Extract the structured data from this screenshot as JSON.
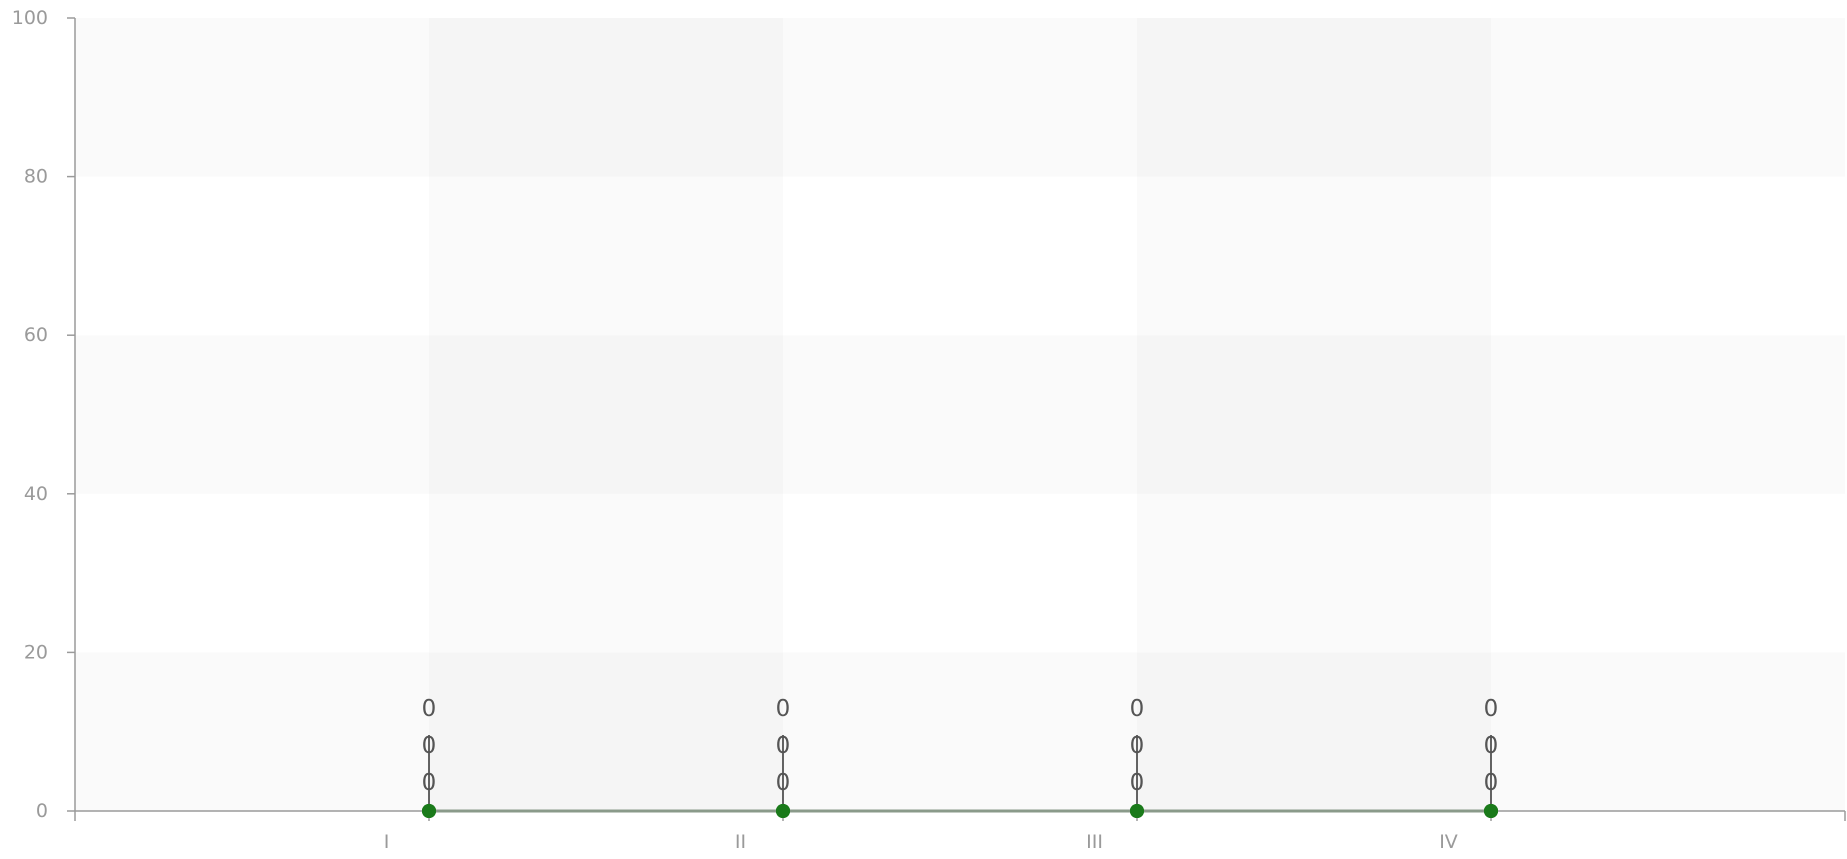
{
  "chart_data": {
    "type": "line",
    "categories": [
      "I",
      "II",
      "III",
      "IV"
    ],
    "series": [
      {
        "values": [
          0,
          0,
          0,
          0
        ]
      },
      {
        "values": [
          0,
          0,
          0,
          0
        ]
      },
      {
        "values": [
          0,
          0,
          0,
          0
        ]
      }
    ],
    "ylim": [
      0,
      100
    ],
    "yticks": [
      0,
      20,
      40,
      60,
      80,
      100
    ],
    "title": "",
    "xlabel": "",
    "ylabel": "",
    "grid": true,
    "legend": "none",
    "colors": {
      "line": "#8a9a8a",
      "marker": "#1a7a1a",
      "axis": "#9a9a9a",
      "band_light": "#fafafa",
      "band_dark": "#f5f5f5",
      "data_label": "#555555",
      "error_bar": "#000000"
    }
  }
}
